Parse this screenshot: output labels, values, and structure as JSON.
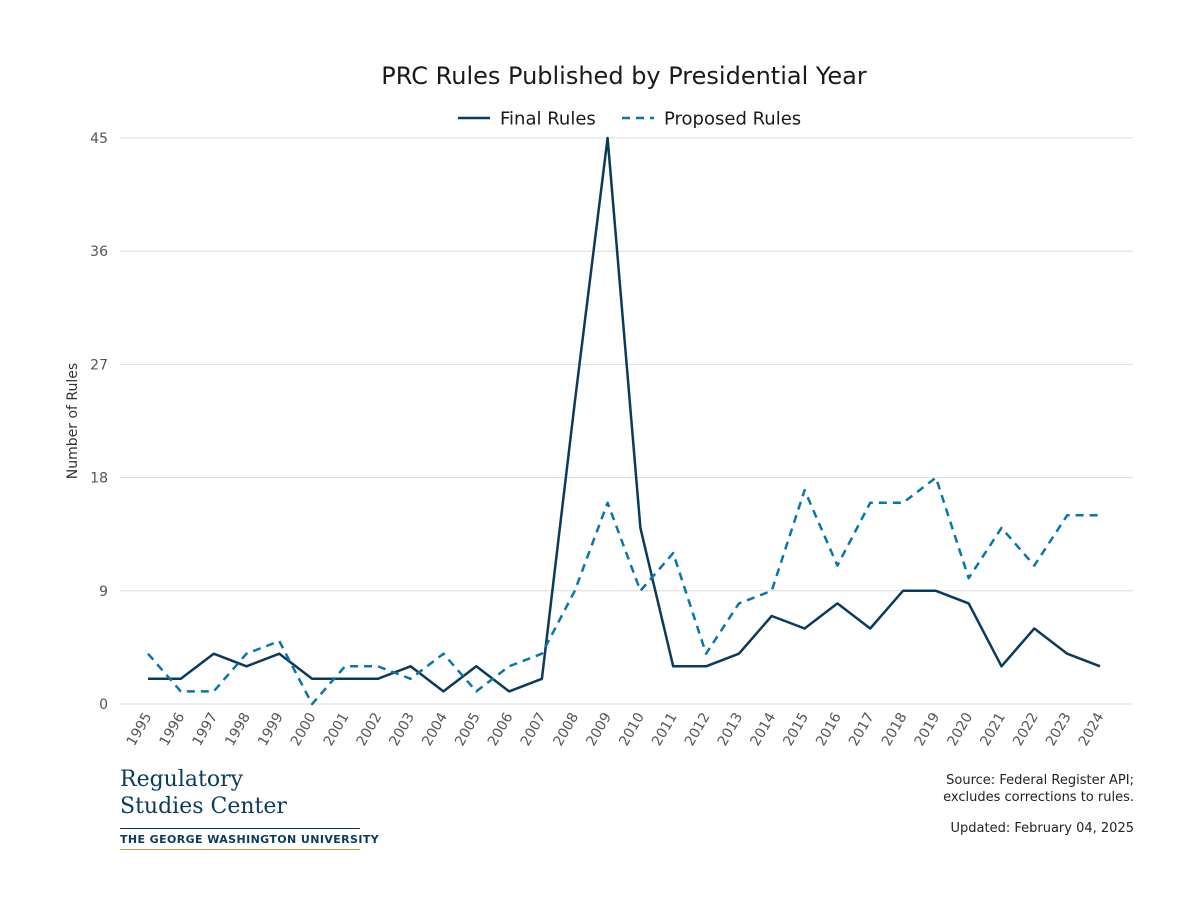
{
  "chart_data": {
    "type": "line",
    "title": "PRC Rules Published by Presidential Year",
    "ylabel": "Number of Rules",
    "xlabel": "",
    "ylim": [
      0,
      45
    ],
    "yticks": [
      0,
      9,
      18,
      27,
      36,
      45
    ],
    "grid": true,
    "legend_position": "top",
    "categories": [
      "1995",
      "1996",
      "1997",
      "1998",
      "1999",
      "2000",
      "2001",
      "2002",
      "2003",
      "2004",
      "2005",
      "2006",
      "2007",
      "2008",
      "2009",
      "2010",
      "2011",
      "2012",
      "2013",
      "2014",
      "2015",
      "2016",
      "2017",
      "2018",
      "2019",
      "2020",
      "2021",
      "2022",
      "2023",
      "2024"
    ],
    "series": [
      {
        "name": "Final Rules",
        "color": "#0b3a5c",
        "style": "solid",
        "values": [
          2,
          2,
          4,
          3,
          4,
          2,
          2,
          2,
          3,
          1,
          3,
          1,
          2,
          24,
          45,
          14,
          3,
          3,
          4,
          7,
          6,
          8,
          6,
          9,
          9,
          8,
          3,
          6,
          4,
          3
        ]
      },
      {
        "name": "Proposed Rules",
        "color": "#0877a8",
        "style": "dashed",
        "values": [
          4,
          1,
          1,
          4,
          5,
          0,
          3,
          3,
          2,
          4,
          1,
          3,
          4,
          9,
          16,
          9,
          12,
          4,
          8,
          9,
          17,
          11,
          16,
          16,
          18,
          10,
          14,
          11,
          15,
          15
        ]
      }
    ]
  },
  "logo": {
    "line1": "Regulatory",
    "line2": "Studies Center",
    "university": "THE GEORGE WASHINGTON UNIVERSITY"
  },
  "footer": {
    "source_line1": "Source: Federal Register API;",
    "source_line2": "excludes corrections to rules.",
    "updated": "Updated: February 04, 2025"
  }
}
